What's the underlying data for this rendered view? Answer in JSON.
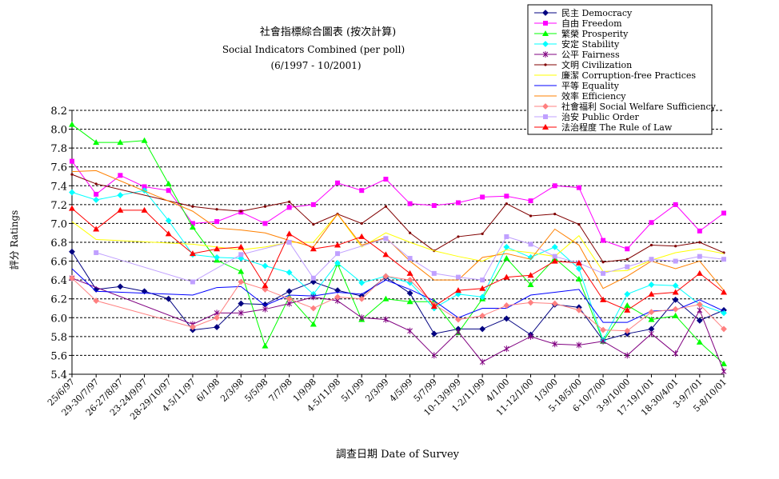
{
  "chart_data": {
    "type": "line",
    "title": "社會指標綜合圖表 (按次計算)",
    "subtitle": "Social Indicators Combined (per poll)",
    "subtitle2": "(6/1997 - 10/2001)",
    "xlabel": "調查日期 Date of Survey",
    "ylabel": "評分 Ratings",
    "ylim": [
      5.4,
      8.2
    ],
    "yticks": [
      "8.2",
      "8.0",
      "7.8",
      "7.6",
      "7.4",
      "7.2",
      "7.0",
      "6.8",
      "6.6",
      "6.4",
      "6.2",
      "6.0",
      "5.8",
      "5.6",
      "5.4"
    ],
    "grid": true,
    "legend_position": "top-right",
    "categories": [
      "25/6/97",
      "29-30/7/97",
      "26-27/8/97",
      "23-24/9/97",
      "28-29/10/97",
      "4-5/11/97",
      "6/1/98",
      "2/3/98",
      "5/5/98",
      "7/7/98",
      "1/9/98",
      "4-5/11/98",
      "5/1/99",
      "2/3/99",
      "4/5/99",
      "5/7/99",
      "10-13/9/99",
      "1-2/11/99",
      "4/1/00",
      "11-12/1/00",
      "1/3/00",
      "5-18/5/00",
      "6-10/7/00",
      "3-9/10/00",
      "17-19/1/01",
      "18-30/4/01",
      "3-9/7/01",
      "5-8/10/01"
    ],
    "series": [
      {
        "name": "民主 Democracy",
        "color": "#000080",
        "marker": "diamond",
        "x": [
          0,
          1,
          2,
          3,
          4,
          5,
          6,
          7,
          8,
          9,
          10,
          11,
          12,
          13,
          14,
          15,
          16,
          17,
          18,
          19,
          20,
          21,
          22,
          23,
          24,
          25,
          26,
          27
        ],
        "values": [
          6.7,
          6.3,
          6.33,
          6.28,
          6.2,
          5.87,
          5.9,
          6.15,
          6.14,
          6.28,
          6.38,
          6.29,
          6.23,
          6.43,
          6.26,
          5.83,
          5.88,
          5.88,
          5.99,
          5.82,
          6.14,
          6.11,
          5.76,
          5.83,
          5.88,
          6.19,
          5.97,
          6.08
        ]
      },
      {
        "name": "自由 Freedom",
        "color": "#ff00ff",
        "marker": "square",
        "x": [
          0,
          1,
          2,
          3,
          4,
          5,
          6,
          7,
          8,
          9,
          10,
          11,
          12,
          13,
          14,
          15,
          16,
          17,
          18,
          19,
          20,
          21,
          22,
          23,
          24,
          25,
          26,
          27
        ],
        "values": [
          7.66,
          7.31,
          7.51,
          7.39,
          7.35,
          7.0,
          7.02,
          7.12,
          7.0,
          7.17,
          7.2,
          7.43,
          7.35,
          7.47,
          7.21,
          7.19,
          7.22,
          7.28,
          7.29,
          7.24,
          7.4,
          7.38,
          6.82,
          6.73,
          7.01,
          7.2,
          6.92,
          7.11
        ]
      },
      {
        "name": "繁榮 Prosperity",
        "color": "#00ff00",
        "marker": "triangle",
        "x": [
          0,
          1,
          2,
          3,
          4,
          5,
          6,
          7,
          8,
          9,
          10,
          11,
          12,
          13,
          14,
          15,
          16,
          17,
          18,
          19,
          20,
          21,
          22,
          23,
          24,
          25,
          26,
          27
        ],
        "values": [
          8.05,
          7.86,
          7.86,
          7.88,
          7.42,
          6.96,
          6.61,
          6.49,
          5.7,
          6.22,
          5.93,
          6.57,
          5.98,
          6.2,
          6.17,
          6.17,
          5.84,
          6.2,
          6.63,
          6.35,
          6.63,
          6.41,
          5.75,
          6.13,
          5.98,
          6.02,
          5.74,
          5.51
        ]
      },
      {
        "name": "安定 Stability",
        "color": "#00ffff",
        "marker": "diamond",
        "x": [
          0,
          1,
          2,
          3,
          4,
          5,
          6,
          7,
          8,
          9,
          10,
          11,
          12,
          13,
          14,
          15,
          16,
          17,
          18,
          19,
          20,
          21,
          22,
          23,
          24,
          25,
          26,
          27
        ],
        "values": [
          7.33,
          7.25,
          7.3,
          7.35,
          7.03,
          6.67,
          6.64,
          6.63,
          6.55,
          6.48,
          6.25,
          6.58,
          6.37,
          6.44,
          6.37,
          6.1,
          6.25,
          6.22,
          6.75,
          6.64,
          6.75,
          6.52,
          5.76,
          6.25,
          6.35,
          6.34,
          6.14,
          6.05
        ]
      },
      {
        "name": "公平 Fairness",
        "color": "#800080",
        "marker": "star",
        "x": [
          0,
          5,
          6,
          7,
          8,
          9,
          10,
          11,
          12,
          13,
          14,
          15,
          16,
          17,
          18,
          19,
          20,
          21,
          22,
          23,
          24,
          25,
          26,
          27
        ],
        "values": [
          6.42,
          5.93,
          6.05,
          6.05,
          6.09,
          6.15,
          6.22,
          6.18,
          6.0,
          5.98,
          5.86,
          5.6,
          5.85,
          5.53,
          5.67,
          5.8,
          5.72,
          5.71,
          5.75,
          5.6,
          5.83,
          5.62,
          6.08,
          5.43
        ]
      },
      {
        "name": "文明 Civilization",
        "color": "#800000",
        "marker": "dot",
        "x": [
          0,
          1,
          5,
          6,
          7,
          8,
          9,
          10,
          11,
          12,
          13,
          14,
          15,
          16,
          17,
          18,
          19,
          20,
          21,
          22,
          23,
          24,
          25,
          26,
          27
        ],
        "values": [
          7.52,
          7.42,
          7.18,
          7.15,
          7.13,
          7.18,
          7.23,
          6.99,
          7.1,
          7.0,
          7.18,
          6.9,
          6.71,
          6.86,
          6.89,
          7.21,
          7.08,
          7.1,
          6.99,
          6.59,
          6.62,
          6.77,
          6.76,
          6.8,
          6.69
        ]
      },
      {
        "name": "廉潔 Corruption-free Practices",
        "color": "#ffff00",
        "marker": "none",
        "x": [
          0,
          1,
          5,
          6,
          7,
          8,
          9,
          10,
          11,
          12,
          13,
          14,
          15,
          16,
          17,
          18,
          19,
          20,
          21,
          22,
          23,
          24,
          25,
          26,
          27
        ],
        "values": [
          7.02,
          6.83,
          6.78,
          6.75,
          6.72,
          6.75,
          6.8,
          6.8,
          7.1,
          6.75,
          6.9,
          6.8,
          6.71,
          6.65,
          6.6,
          6.72,
          6.69,
          6.65,
          6.87,
          6.49,
          6.5,
          6.61,
          6.69,
          6.73,
          6.68
        ]
      },
      {
        "name": "平等 Equality",
        "color": "#0000ff",
        "marker": "none",
        "x": [
          0,
          1,
          5,
          6,
          7,
          8,
          9,
          10,
          11,
          12,
          13,
          14,
          15,
          16,
          17,
          18,
          19,
          20,
          21,
          22,
          23,
          24,
          25,
          26,
          27
        ],
        "values": [
          6.52,
          6.28,
          6.24,
          6.32,
          6.33,
          6.13,
          6.24,
          6.23,
          6.27,
          6.25,
          6.4,
          6.3,
          6.18,
          6.0,
          6.1,
          6.1,
          6.24,
          6.27,
          6.3,
          5.95,
          5.95,
          6.07,
          6.08,
          6.19,
          6.07
        ]
      },
      {
        "name": "效率 Efficiency",
        "color": "#ff8000",
        "marker": "none",
        "x": [
          0,
          1,
          5,
          6,
          7,
          8,
          9,
          10,
          11,
          12,
          13,
          14,
          15,
          16,
          17,
          18,
          19,
          20,
          21,
          22,
          23,
          24,
          25,
          26,
          27
        ],
        "values": [
          7.55,
          7.56,
          7.13,
          6.95,
          6.93,
          6.9,
          6.82,
          6.75,
          7.1,
          6.77,
          6.85,
          6.6,
          6.4,
          6.4,
          6.64,
          6.68,
          6.62,
          6.94,
          6.77,
          6.31,
          6.44,
          6.6,
          6.52,
          6.6,
          6.29
        ]
      },
      {
        "name": "社會福利 Social Welfare Sufficiency",
        "color": "#ff8080",
        "marker": "diamond",
        "x": [
          0,
          1,
          5,
          6,
          7,
          8,
          9,
          10,
          11,
          12,
          13,
          14,
          15,
          16,
          17,
          18,
          19,
          20,
          21,
          22,
          23,
          24,
          25,
          26,
          27
        ],
        "values": [
          6.42,
          6.18,
          5.9,
          6.0,
          6.38,
          6.3,
          6.2,
          6.1,
          6.22,
          6.2,
          6.44,
          6.4,
          6.14,
          5.98,
          6.02,
          6.13,
          6.16,
          6.15,
          6.08,
          5.87,
          5.86,
          6.06,
          6.09,
          6.14,
          5.88
        ]
      },
      {
        "name": "治安 Public Order",
        "color": "#c0a0ff",
        "marker": "square",
        "x": [
          1,
          5,
          7,
          9,
          10,
          11,
          13,
          14,
          15,
          16,
          17,
          18,
          19,
          20,
          21,
          22,
          23,
          24,
          25,
          26,
          27
        ],
        "values": [
          6.69,
          6.38,
          6.67,
          6.8,
          6.42,
          6.68,
          6.84,
          6.63,
          6.47,
          6.43,
          6.4,
          6.86,
          6.78,
          6.65,
          6.58,
          6.47,
          6.54,
          6.62,
          6.6,
          6.65,
          6.62
        ]
      },
      {
        "name": "法治程度 The Rule of Law",
        "color": "#ff0000",
        "marker": "triangle",
        "x": [
          0,
          1,
          2,
          3,
          4,
          5,
          6,
          7,
          8,
          9,
          10,
          11,
          12,
          13,
          14,
          15,
          16,
          17,
          18,
          19,
          20,
          21,
          22,
          23,
          24,
          25,
          26,
          27
        ],
        "values": [
          7.16,
          6.94,
          7.14,
          7.14,
          6.89,
          6.68,
          6.73,
          6.75,
          6.34,
          6.89,
          6.73,
          6.77,
          6.86,
          6.67,
          6.47,
          6.12,
          6.29,
          6.31,
          6.43,
          6.45,
          6.6,
          6.58,
          6.19,
          6.08,
          6.25,
          6.27,
          6.47,
          6.27
        ]
      }
    ]
  }
}
